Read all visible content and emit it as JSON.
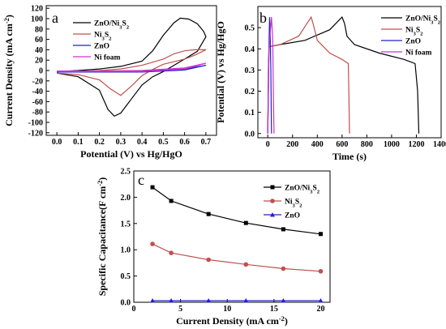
{
  "chart_data": [
    {
      "panel": "a",
      "type": "line",
      "xlabel": "Potential (V) vs Hg/HgO",
      "ylabel": "Current Density (mA cm⁻²)",
      "xlim": [
        -0.05,
        0.75
      ],
      "ylim": [
        -125,
        125
      ],
      "xticks": [
        0.0,
        0.1,
        0.2,
        0.3,
        0.4,
        0.5,
        0.6,
        0.7
      ],
      "yticks": [
        -120,
        -100,
        -80,
        -60,
        -40,
        -20,
        0,
        20,
        40,
        60,
        80,
        100,
        120
      ],
      "legend_position": "top-center",
      "series": [
        {
          "name": "ZnO/Ni₃S₂",
          "color": "#000000",
          "x": [
            0.0,
            0.1,
            0.2,
            0.3,
            0.4,
            0.45,
            0.5,
            0.55,
            0.58,
            0.62,
            0.66,
            0.69,
            0.7,
            0.66,
            0.6,
            0.55,
            0.5,
            0.45,
            0.4,
            0.35,
            0.3,
            0.27,
            0.24,
            0.2,
            0.1,
            0.0
          ],
          "y": [
            -2,
            0,
            3,
            8,
            18,
            38,
            68,
            92,
            101,
            99,
            90,
            75,
            65,
            37,
            22,
            10,
            -2,
            -12,
            -28,
            -55,
            -82,
            -88,
            -75,
            -38,
            -12,
            -5
          ]
        },
        {
          "name": "Ni₃S₂",
          "color": "#c0504d",
          "x": [
            0.0,
            0.1,
            0.2,
            0.3,
            0.4,
            0.5,
            0.55,
            0.6,
            0.65,
            0.7,
            0.65,
            0.6,
            0.5,
            0.45,
            0.4,
            0.35,
            0.3,
            0.25,
            0.2,
            0.1,
            0.0
          ],
          "y": [
            -3,
            -2,
            0,
            3,
            10,
            22,
            32,
            38,
            40,
            40,
            30,
            22,
            12,
            2,
            -10,
            -30,
            -48,
            -35,
            -18,
            -8,
            -5
          ]
        },
        {
          "name": "ZnO",
          "color": "#2020cc",
          "x": [
            0.0,
            0.2,
            0.4,
            0.6,
            0.7,
            0.6,
            0.4,
            0.2,
            0.0
          ],
          "y": [
            -2,
            -2,
            -1,
            3,
            10,
            1,
            -3,
            -3,
            -3
          ]
        },
        {
          "name": "Ni foam",
          "color": "#cc33cc",
          "x": [
            0.0,
            0.2,
            0.4,
            0.6,
            0.7,
            0.6,
            0.4,
            0.2,
            0.0
          ],
          "y": [
            -1,
            -1,
            0,
            5,
            14,
            3,
            -2,
            -2,
            -2
          ]
        }
      ]
    },
    {
      "panel": "b",
      "type": "line",
      "xlabel": "Time (s)",
      "ylabel": "Potential (V) vs Hg/HgO",
      "xlim": [
        -80,
        1400
      ],
      "ylim": [
        -0.02,
        0.6
      ],
      "xticks": [
        0,
        200,
        400,
        600,
        800,
        1000,
        1200,
        1400
      ],
      "yticks": [
        0.0,
        0.1,
        0.2,
        0.3,
        0.4,
        0.5
      ],
      "legend_position": "top-right",
      "series": [
        {
          "name": "ZnO/Ni₃S₂",
          "color": "#000000",
          "x": [
            0,
            10,
            100,
            300,
            500,
            600,
            620,
            640,
            700,
            900,
            1100,
            1190,
            1210,
            1220
          ],
          "y": [
            0.0,
            0.41,
            0.42,
            0.44,
            0.49,
            0.55,
            0.52,
            0.46,
            0.42,
            0.38,
            0.35,
            0.33,
            0.2,
            0.0
          ]
        },
        {
          "name": "Ni₃S₂",
          "color": "#c0504d",
          "x": [
            0,
            10,
            100,
            250,
            350,
            365,
            400,
            500,
            600,
            650,
            655,
            660
          ],
          "y": [
            0.0,
            0.41,
            0.42,
            0.46,
            0.55,
            0.52,
            0.44,
            0.38,
            0.35,
            0.33,
            0.2,
            0.0
          ]
        },
        {
          "name": "ZnO",
          "color": "#2020cc",
          "x": [
            0,
            5,
            10,
            15,
            20,
            25,
            28,
            30
          ],
          "y": [
            0.0,
            0.3,
            0.42,
            0.55,
            0.45,
            0.3,
            0.1,
            0.0
          ]
        },
        {
          "name": "Ni foam",
          "color": "#cc33cc",
          "x": [
            0,
            10,
            20,
            30,
            40,
            45,
            50
          ],
          "y": [
            0.0,
            0.4,
            0.48,
            0.55,
            0.45,
            0.2,
            0.0
          ]
        }
      ]
    },
    {
      "panel": "c",
      "type": "line",
      "xlabel": "Current Density (mA cm⁻²)",
      "ylabel": "Specific Capacitance(F cm⁻²)",
      "xlim": [
        0,
        21
      ],
      "ylim": [
        0,
        2.5
      ],
      "xticks": [
        0,
        5,
        10,
        15,
        20
      ],
      "yticks": [
        0.0,
        0.5,
        1.0,
        1.5,
        2.0,
        2.5
      ],
      "legend_position": "top-right",
      "series": [
        {
          "name": "ZnO/Ni₃S₂",
          "color": "#000000",
          "marker": "square",
          "x": [
            2,
            4,
            8,
            12,
            16,
            20
          ],
          "y": [
            2.19,
            1.93,
            1.68,
            1.51,
            1.39,
            1.3
          ]
        },
        {
          "name": "Ni₃S₂",
          "color": "#c0504d",
          "marker": "circle",
          "x": [
            2,
            4,
            8,
            12,
            16,
            20
          ],
          "y": [
            1.11,
            0.94,
            0.81,
            0.72,
            0.64,
            0.59
          ]
        },
        {
          "name": "ZnO",
          "color": "#2020cc",
          "marker": "triangle",
          "x": [
            2,
            4,
            8,
            12,
            16,
            20
          ],
          "y": [
            0.03,
            0.03,
            0.03,
            0.03,
            0.03,
            0.03
          ]
        }
      ]
    }
  ]
}
